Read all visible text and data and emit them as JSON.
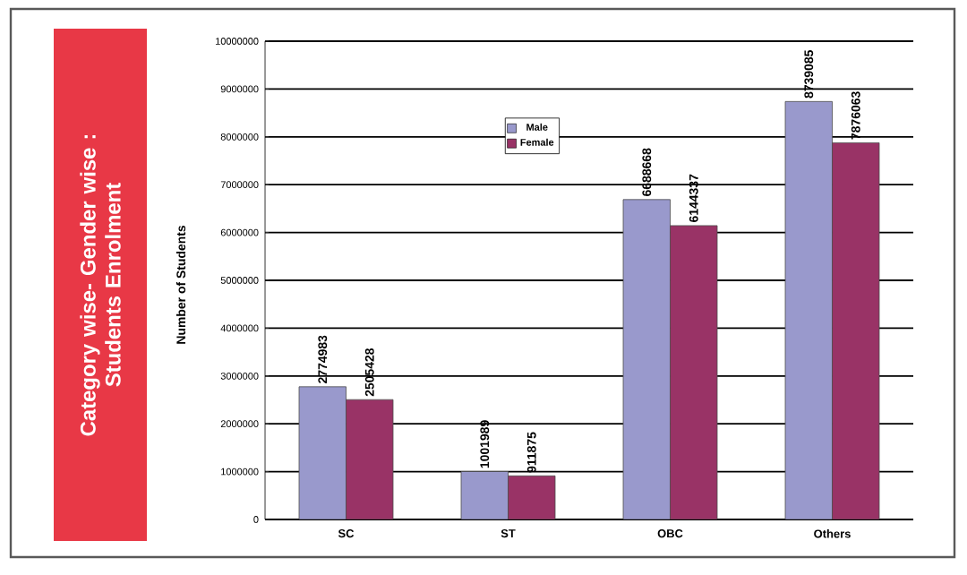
{
  "chart_data": {
    "type": "bar",
    "title": "Category wise- Gender wise :\nStudents Enrolment",
    "ylabel": "Number of Students",
    "categories": [
      "SC",
      "ST",
      "OBC",
      "Others"
    ],
    "series": [
      {
        "name": "Male",
        "color": "#9999cc",
        "values": [
          2774983,
          1001989,
          6688668,
          8739085
        ]
      },
      {
        "name": "Female",
        "color": "#993366",
        "values": [
          2505428,
          911875,
          6144337,
          7876063
        ]
      }
    ],
    "ylim": [
      0,
      10000000
    ],
    "yticks": [
      0,
      1000000,
      2000000,
      3000000,
      4000000,
      5000000,
      6000000,
      7000000,
      8000000,
      9000000,
      10000000
    ],
    "grid": "y",
    "legend": "top",
    "data_labels": true
  }
}
